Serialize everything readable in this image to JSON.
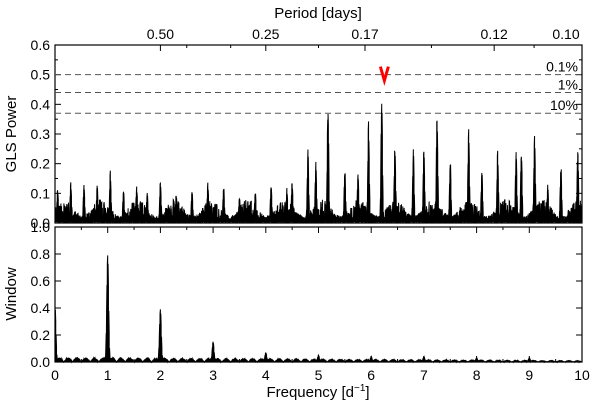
{
  "chart_data": [
    {
      "type": "line",
      "panel": "top",
      "top_axis": {
        "label": "Period [days]",
        "tick_labels": [
          "0.50",
          "0.25",
          "0.17",
          "0.12",
          "0.10"
        ],
        "tick_periods": [
          0.5,
          0.25,
          0.17,
          0.12,
          0.1
        ]
      },
      "xlim": [
        0,
        10
      ],
      "xticks": [
        0,
        1,
        2,
        3,
        4,
        5,
        6,
        7,
        8,
        9,
        10
      ],
      "ylabel": "GLS Power",
      "ylim": [
        0,
        0.6
      ],
      "yticks": [
        "0.0",
        "0.1",
        "0.2",
        "0.3",
        "0.4",
        "0.5",
        "0.6"
      ],
      "peaks": [
        [
          0.05,
          0.12
        ],
        [
          0.3,
          0.14
        ],
        [
          0.55,
          0.13
        ],
        [
          0.8,
          0.13
        ],
        [
          1.05,
          0.18
        ],
        [
          1.3,
          0.12
        ],
        [
          1.55,
          0.13
        ],
        [
          1.75,
          0.11
        ],
        [
          2.0,
          0.15
        ],
        [
          2.3,
          0.1
        ],
        [
          2.6,
          0.12
        ],
        [
          2.9,
          0.14
        ],
        [
          3.2,
          0.13
        ],
        [
          3.5,
          0.09
        ],
        [
          3.8,
          0.11
        ],
        [
          4.1,
          0.14
        ],
        [
          4.4,
          0.12
        ],
        [
          4.5,
          0.15
        ],
        [
          4.8,
          0.25
        ],
        [
          4.95,
          0.21
        ],
        [
          5.18,
          0.43
        ],
        [
          5.5,
          0.19
        ],
        [
          5.75,
          0.17
        ],
        [
          5.95,
          0.35
        ],
        [
          6.2,
          0.45
        ],
        [
          6.45,
          0.27
        ],
        [
          6.8,
          0.25
        ],
        [
          7.0,
          0.26
        ],
        [
          7.25,
          0.38
        ],
        [
          7.5,
          0.22
        ],
        [
          7.85,
          0.34
        ],
        [
          8.1,
          0.18
        ],
        [
          8.4,
          0.25
        ],
        [
          8.75,
          0.25
        ],
        [
          8.85,
          0.26
        ],
        [
          9.1,
          0.32
        ],
        [
          9.35,
          0.13
        ],
        [
          9.6,
          0.2
        ],
        [
          9.92,
          0.25
        ]
      ],
      "significance_levels": [
        {
          "label": "0.1%",
          "value": 0.5
        },
        {
          "label": "1%",
          "value": 0.44
        },
        {
          "label": "10%",
          "value": 0.37
        }
      ],
      "marker": {
        "x": 6.25,
        "color": "#ff0000"
      }
    },
    {
      "type": "line",
      "panel": "bottom",
      "xlabel": "Frequency [d",
      "xlabel_superscript": "−1",
      "xlabel_close": "]",
      "xlim": [
        0,
        10
      ],
      "xticks": [
        "0",
        "1",
        "2",
        "3",
        "4",
        "5",
        "6",
        "7",
        "8",
        "9",
        "10"
      ],
      "ylabel": "Window",
      "ylim": [
        0,
        1.0
      ],
      "yticks": [
        "0.0",
        "0.2",
        "0.4",
        "0.6",
        "0.8",
        "1.0"
      ],
      "peaks": [
        [
          0.0,
          0.42
        ],
        [
          1.0,
          0.79
        ],
        [
          2.0,
          0.39
        ],
        [
          3.0,
          0.15
        ],
        [
          4.0,
          0.07
        ],
        [
          5.0,
          0.05
        ],
        [
          6.0,
          0.04
        ],
        [
          7.0,
          0.04
        ],
        [
          8.0,
          0.03
        ],
        [
          9.0,
          0.03
        ]
      ]
    }
  ]
}
